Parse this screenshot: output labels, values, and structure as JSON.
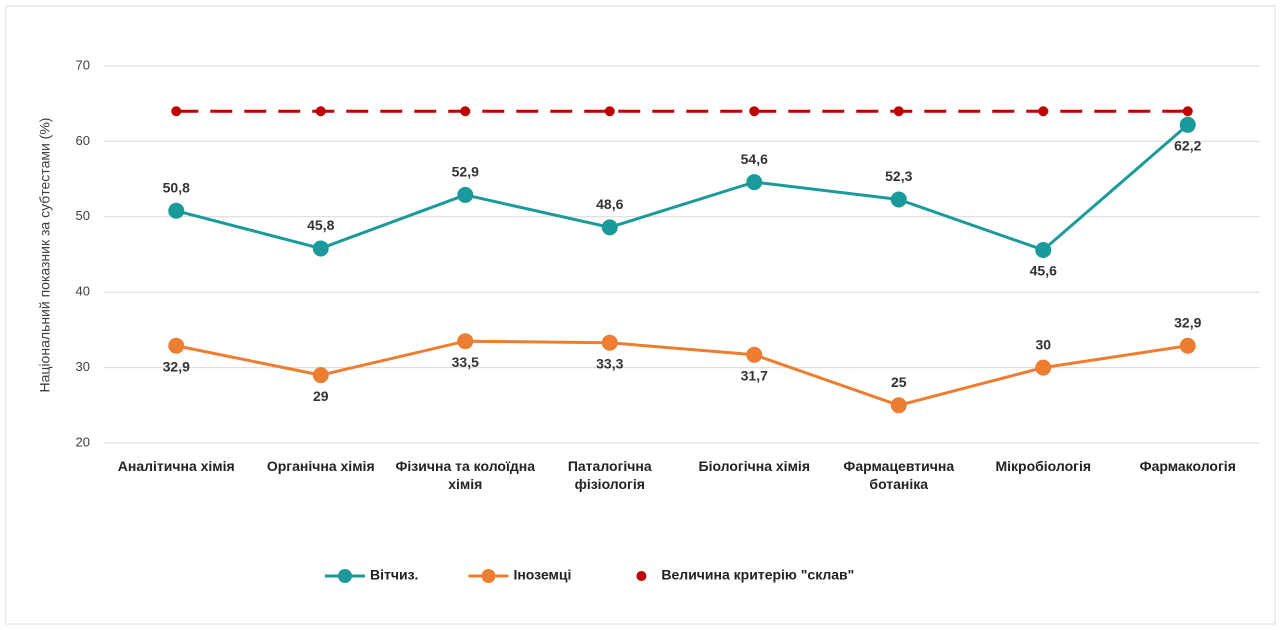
{
  "chart_data": {
    "type": "line",
    "y_label": "Національний показник за субтестами (%)",
    "categories": [
      "Аналітична хімія",
      "Органічна хімія",
      "Фізична та колоїдна хімія",
      "Паталогічна фізіологія",
      "Біологічна хімія",
      "Фармацевтична ботаніка",
      "Мікробіологія",
      "Фармакологія"
    ],
    "series": [
      {
        "name": "Вітчиз.",
        "color": "#1a9a9a",
        "values": [
          50.8,
          45.8,
          52.9,
          48.6,
          54.6,
          52.3,
          45.6,
          62.2
        ],
        "value_labels": [
          "50,8",
          "45,8",
          "52,9",
          "48,6",
          "54,6",
          "52,3",
          "45,6",
          "62,2"
        ]
      },
      {
        "name": "Іноземці",
        "color": "#ed7d31",
        "values": [
          32.9,
          29,
          33.5,
          33.3,
          31.7,
          25,
          30,
          32.9
        ],
        "value_labels": [
          "32,9",
          "29",
          "33,5",
          "33,3",
          "31,7",
          "25",
          "30",
          "32,9"
        ]
      },
      {
        "name": "Величина критерію \"склав\"",
        "color": "#c00000",
        "dashed": true,
        "values": [
          64,
          64,
          64,
          64,
          64,
          64,
          64,
          64
        ]
      }
    ],
    "ylim": [
      20,
      70
    ],
    "yticks": [
      20,
      30,
      40,
      50,
      60,
      70
    ],
    "grid": true,
    "legend": "bottom"
  }
}
